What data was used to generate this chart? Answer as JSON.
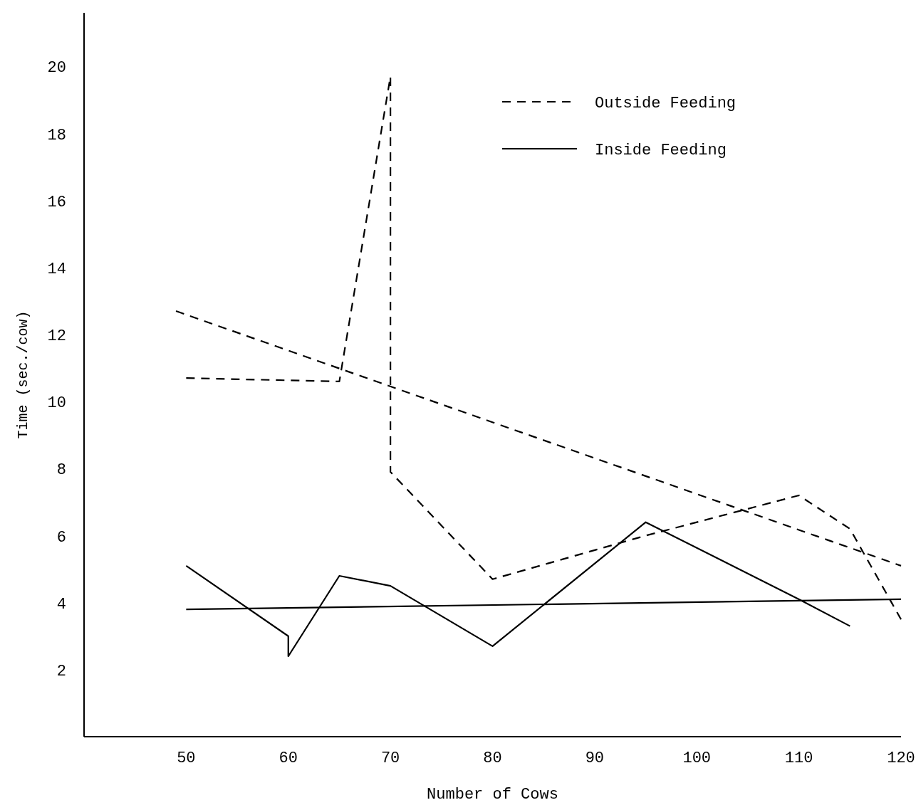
{
  "chart_data": {
    "type": "line",
    "xlabel": "Number of Cows",
    "ylabel": "Time (sec./cow)",
    "xlim": [
      40,
      120
    ],
    "xticks": [
      50,
      60,
      70,
      80,
      90,
      100,
      110,
      120
    ],
    "ylim": [
      0,
      21.6
    ],
    "yticks": [
      2,
      4,
      6,
      8,
      10,
      12,
      14,
      16,
      18,
      20
    ],
    "grid": false,
    "legend": "top right",
    "series": [
      {
        "name": "Outside Feeding",
        "color": "#000000",
        "line_style": "dashed",
        "x": [
          50,
          65,
          70,
          70,
          80,
          95,
          110,
          115,
          120
        ],
        "values": [
          10.7,
          10.6,
          19.7,
          7.9,
          4.7,
          6.0,
          7.2,
          6.2,
          3.5
        ]
      },
      {
        "name": "Inside Feeding",
        "color": "#000000",
        "line_style": "solid",
        "x": [
          50,
          60,
          60,
          65,
          70,
          80,
          95,
          110,
          115
        ],
        "values": [
          5.1,
          3.0,
          2.4,
          4.8,
          4.5,
          2.7,
          6.4,
          4.1,
          3.3
        ]
      },
      {
        "color": "#000000",
        "line_style": "dashed",
        "x": [
          49,
          120
        ],
        "values": [
          12.7,
          5.1
        ]
      },
      {
        "color": "#000000",
        "line_style": "solid",
        "x": [
          50,
          120
        ],
        "values": [
          3.8,
          4.1
        ]
      }
    ]
  }
}
